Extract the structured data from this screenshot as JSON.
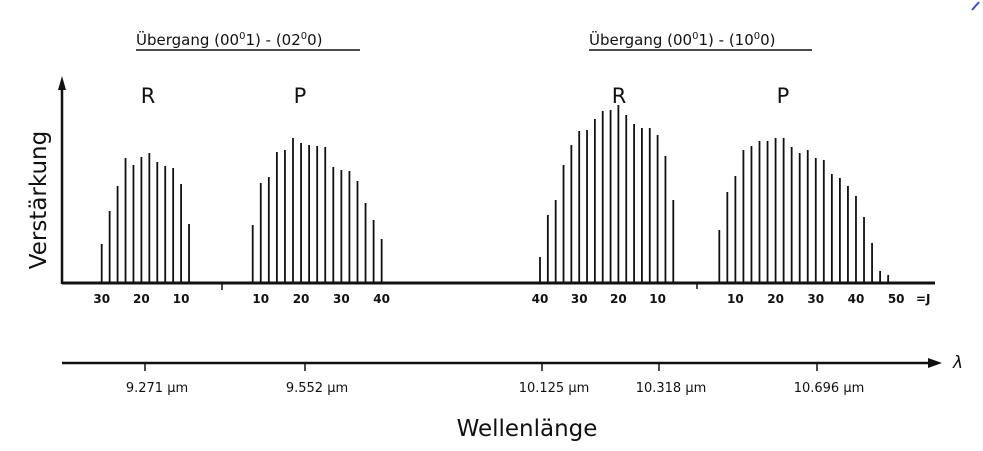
{
  "chart_data": {
    "type": "bar",
    "title": "",
    "ylabel": "Verstärkung",
    "xlabel": "Wellenlänge",
    "x_axis_symbol": "λ",
    "j_axis_label": "=J",
    "y_units": "arbitrary (relative gain)",
    "ylim": [
      0,
      180
    ],
    "grid": false,
    "transitions": [
      {
        "title": "Übergang (00⁰1) - (02⁰0)",
        "branches": [
          {
            "name": "R",
            "J": [
              30,
              28,
              26,
              24,
              22,
              20,
              18,
              16,
              14,
              12,
              10,
              8
            ],
            "values": [
              39,
              72,
              97,
              125,
              118,
              126,
              130,
              121,
              117,
              115,
              99,
              59
            ],
            "tick_labels": [
              "30",
              "20",
              "10"
            ],
            "tick_J": [
              30,
              20,
              10
            ]
          },
          {
            "name": "P",
            "J": [
              8,
              10,
              12,
              14,
              16,
              18,
              20,
              22,
              24,
              26,
              28,
              30,
              32,
              34,
              36,
              38,
              40
            ],
            "values": [
              58,
              100,
              106,
              131,
              133,
              145,
              140,
              138,
              137,
              136,
              116,
              113,
              112,
              102,
              80,
              63,
              44
            ],
            "tick_labels": [
              "10",
              "20",
              "30",
              "40"
            ],
            "tick_J": [
              10,
              20,
              30,
              40
            ]
          }
        ]
      },
      {
        "title": "Übergang (00⁰1) - (10⁰0)",
        "branches": [
          {
            "name": "R",
            "J": [
              40,
              38,
              36,
              34,
              32,
              30,
              28,
              26,
              24,
              22,
              20,
              18,
              16,
              14,
              12,
              10,
              8,
              6
            ],
            "values": [
              26,
              68,
              83,
              118,
              138,
              152,
              153,
              164,
              172,
              173,
              178,
              168,
              159,
              155,
              155,
              148,
              127,
              83
            ],
            "tick_labels": [
              "40",
              "30",
              "20",
              "10"
            ],
            "tick_J": [
              40,
              30,
              20,
              10
            ]
          },
          {
            "name": "P",
            "J": [
              6,
              8,
              10,
              12,
              14,
              16,
              18,
              20,
              22,
              24,
              26,
              28,
              30,
              32,
              34,
              36,
              38,
              40,
              42,
              44,
              46,
              48
            ],
            "values": [
              53,
              91,
              107,
              133,
              137,
              142,
              142,
              145,
              145,
              136,
              130,
              133,
              125,
              123,
              109,
              105,
              97,
              87,
              66,
              40,
              12,
              8
            ],
            "tick_labels": [
              "10",
              "20",
              "30",
              "40",
              "50"
            ],
            "tick_J": [
              10,
              20,
              30,
              40,
              50
            ]
          }
        ]
      }
    ],
    "wavelength_ticks": [
      "9.271 μm",
      "9.552 μm",
      "10.125 μm",
      "10.318 μm",
      "10.696 μm"
    ],
    "titles": {
      "t1": {
        "main": "Übergang (00",
        "sup1": "0",
        "mid": "1) - (02",
        "sup2": "0",
        "end": "0)"
      },
      "t2": {
        "main": "Übergang (00",
        "sup1": "0",
        "mid": "1) - (10",
        "sup2": "0",
        "end": "0)"
      }
    }
  }
}
